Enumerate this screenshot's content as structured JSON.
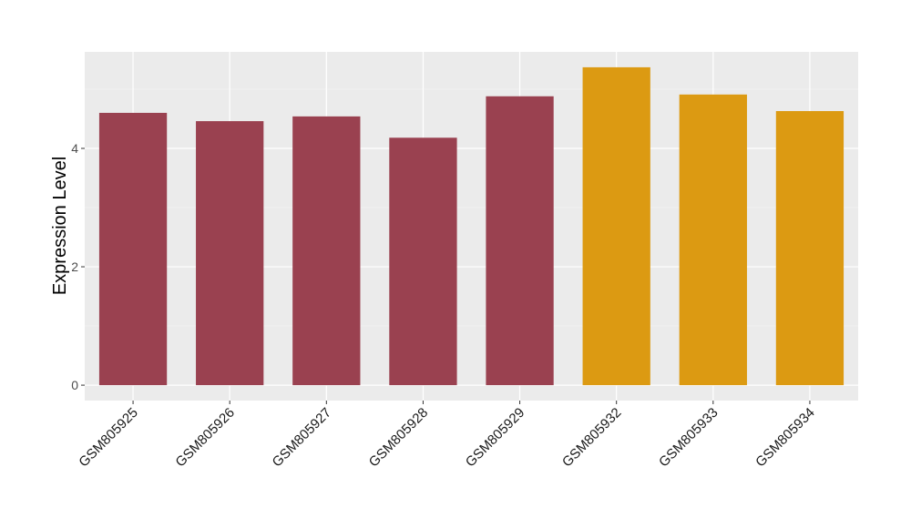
{
  "chart_data": {
    "type": "bar",
    "title": "",
    "xlabel": "",
    "ylabel": "Expression Level",
    "categories": [
      "GSM805925",
      "GSM805926",
      "GSM805927",
      "GSM805928",
      "GSM805929",
      "GSM805932",
      "GSM805933",
      "GSM805934"
    ],
    "values": [
      4.6,
      4.46,
      4.54,
      4.18,
      4.88,
      5.37,
      4.91,
      4.63
    ],
    "bar_colors": [
      "#9A4150",
      "#9A4150",
      "#9A4150",
      "#9A4150",
      "#9A4150",
      "#DC9A12",
      "#DC9A12",
      "#DC9A12"
    ],
    "ylim": [
      -0.26,
      5.63
    ],
    "yticks": [
      0,
      2,
      4
    ],
    "ytick_labels": [
      "0",
      "2",
      "4"
    ],
    "grid": true,
    "panel_background": "#EBEBEB"
  }
}
